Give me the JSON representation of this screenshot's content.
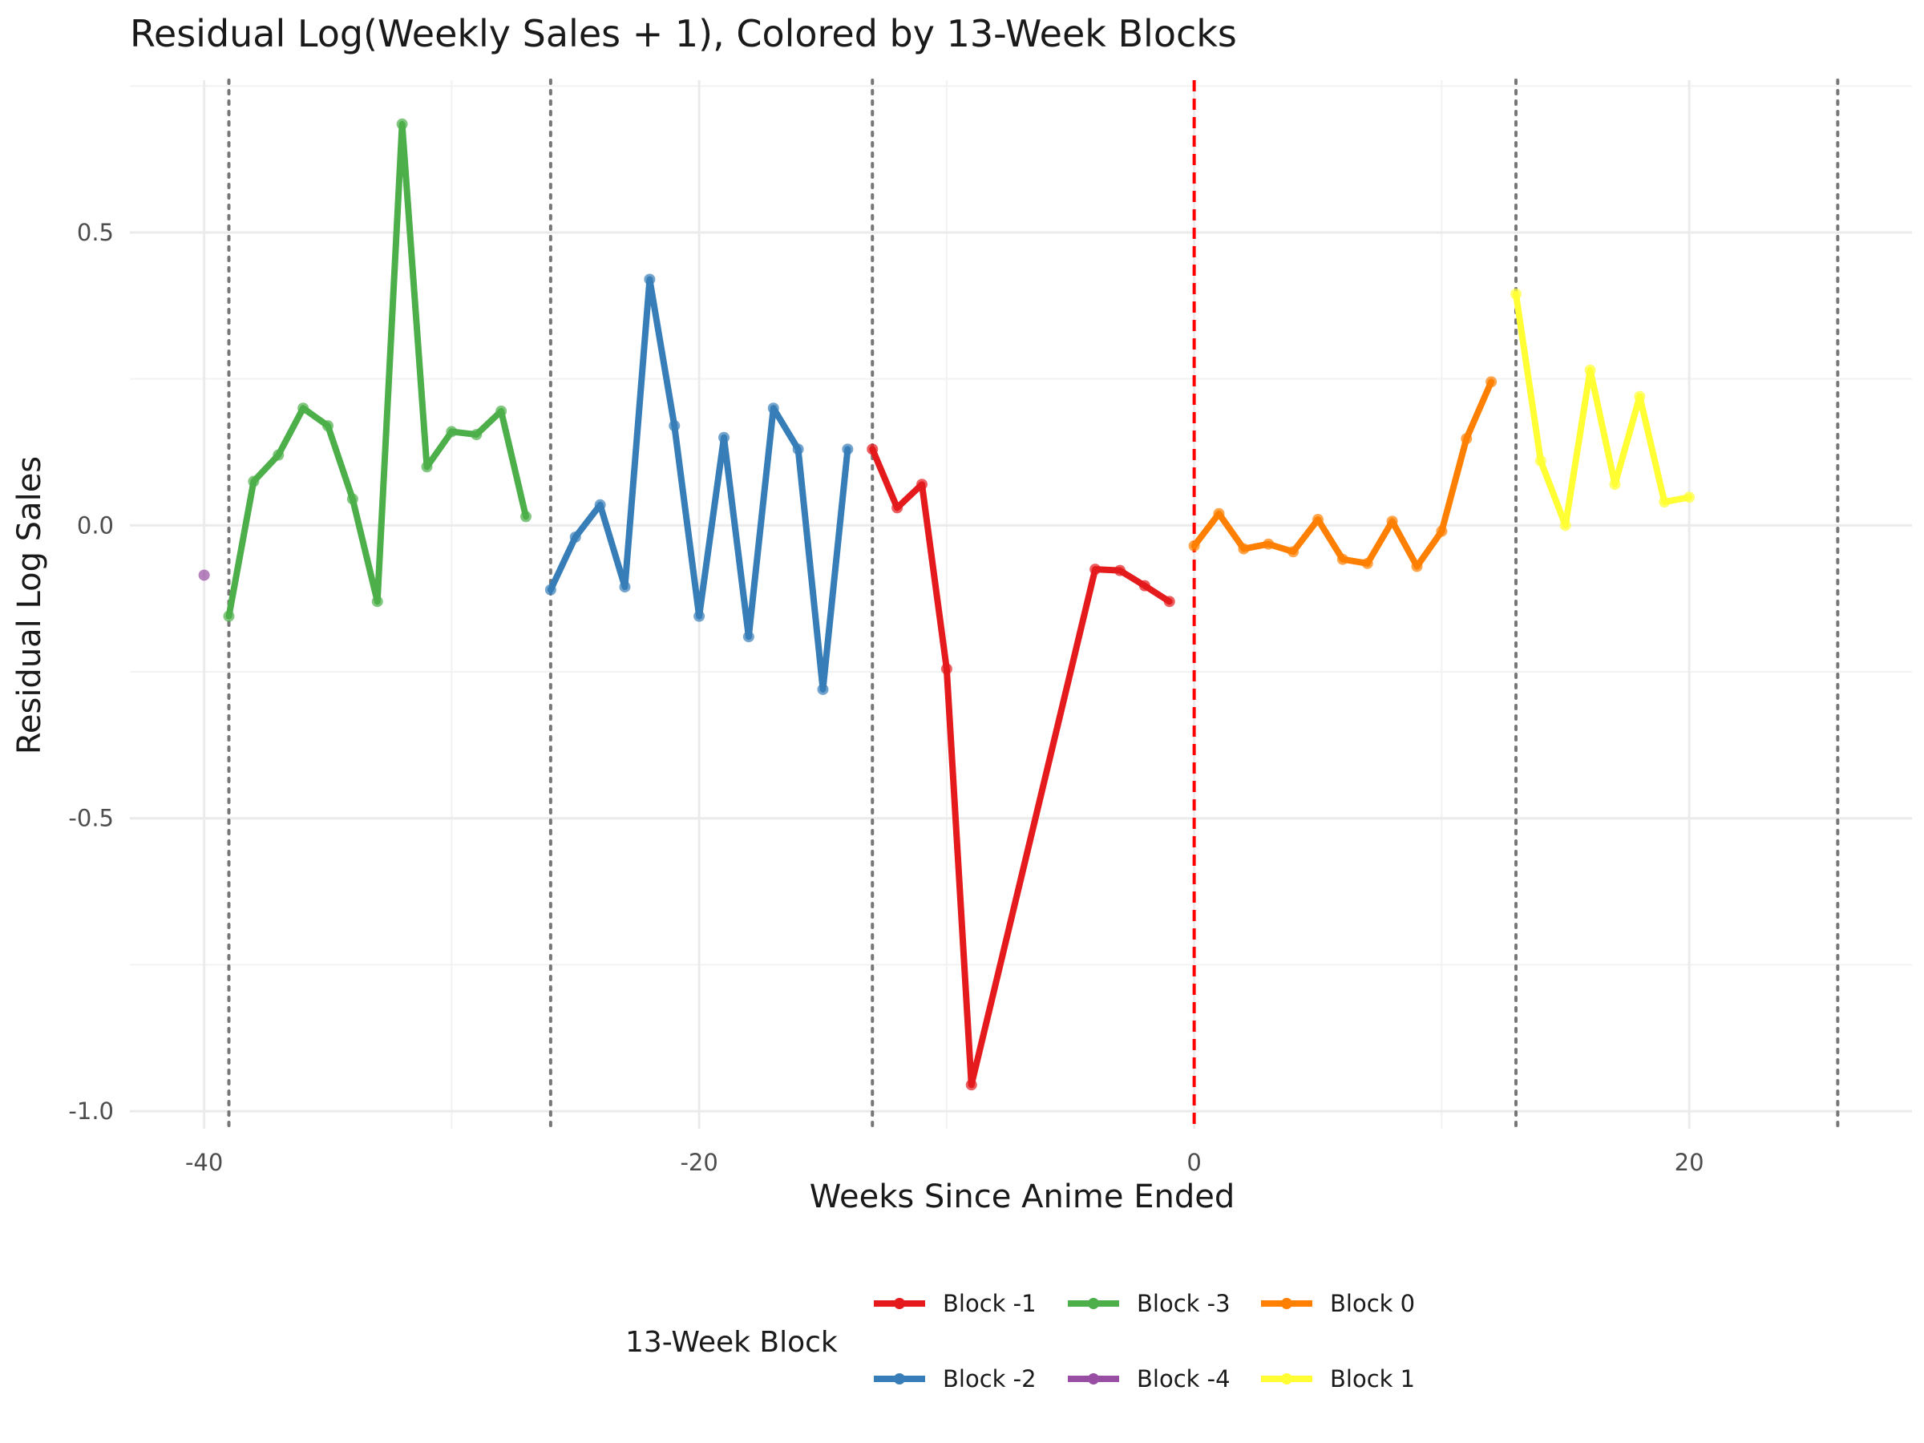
{
  "chart_data": {
    "type": "line",
    "title": "Residual Log(Weekly Sales + 1), Colored by 13-Week Blocks",
    "xlabel": "Weeks Since Anime Ended",
    "ylabel": "Residual Log Sales",
    "xlim": [
      -43,
      29
    ],
    "ylim": [
      -1.03,
      0.76
    ],
    "x_ticks": [
      -40,
      -20,
      0,
      20
    ],
    "x_tick_labels": [
      "-40",
      "-20",
      "0",
      "20"
    ],
    "y_ticks": [
      -1.0,
      -0.5,
      0.0,
      0.5
    ],
    "y_tick_labels": [
      "-1.0",
      "-0.5",
      "0.0",
      "0.5"
    ],
    "grid": true,
    "block_boundaries": [
      -39,
      -26,
      -13,
      13,
      26
    ],
    "anime_end_line": 0,
    "legend": {
      "title": "13-Week Block",
      "position": "bottom"
    },
    "series": [
      {
        "name": "Block -1",
        "color": "#E41A1C",
        "x": [
          -13,
          -12,
          -11,
          -10,
          -9,
          -4,
          -3,
          -2,
          -1
        ],
        "y": [
          0.13,
          0.03,
          0.07,
          -0.245,
          -0.955,
          -0.075,
          -0.077,
          -0.103,
          -0.13
        ]
      },
      {
        "name": "Block -2",
        "color": "#377EB8",
        "x": [
          -26,
          -25,
          -24,
          -23,
          -22,
          -21,
          -20,
          -19,
          -18,
          -17,
          -16,
          -15,
          -14
        ],
        "y": [
          -0.11,
          -0.02,
          0.035,
          -0.105,
          0.42,
          0.17,
          -0.155,
          0.15,
          -0.19,
          0.2,
          0.13,
          -0.28,
          0.13
        ]
      },
      {
        "name": "Block -3",
        "color": "#4DAF4A",
        "x": [
          -39,
          -38,
          -37,
          -36,
          -35,
          -34,
          -33,
          -32,
          -31,
          -30,
          -29,
          -28,
          -27
        ],
        "y": [
          -0.155,
          0.075,
          0.12,
          0.2,
          0.17,
          0.045,
          -0.13,
          0.685,
          0.1,
          0.16,
          0.155,
          0.195,
          0.015
        ]
      },
      {
        "name": "Block -4",
        "color": "#984EA3",
        "x": [
          -40
        ],
        "y": [
          -0.085
        ]
      },
      {
        "name": "Block 0",
        "color": "#FF7F00",
        "x": [
          0,
          1,
          2,
          3,
          4,
          5,
          6,
          7,
          8,
          9,
          10,
          11,
          12
        ],
        "y": [
          -0.035,
          0.02,
          -0.04,
          -0.032,
          -0.045,
          0.01,
          -0.058,
          -0.065,
          0.007,
          -0.07,
          -0.01,
          0.148,
          0.245
        ]
      },
      {
        "name": "Block 1",
        "color": "#FFFF33",
        "x": [
          13,
          14,
          15,
          16,
          17,
          18,
          19,
          20
        ],
        "y": [
          0.395,
          0.11,
          0.0,
          0.265,
          0.07,
          0.22,
          0.04,
          0.048
        ]
      }
    ]
  }
}
